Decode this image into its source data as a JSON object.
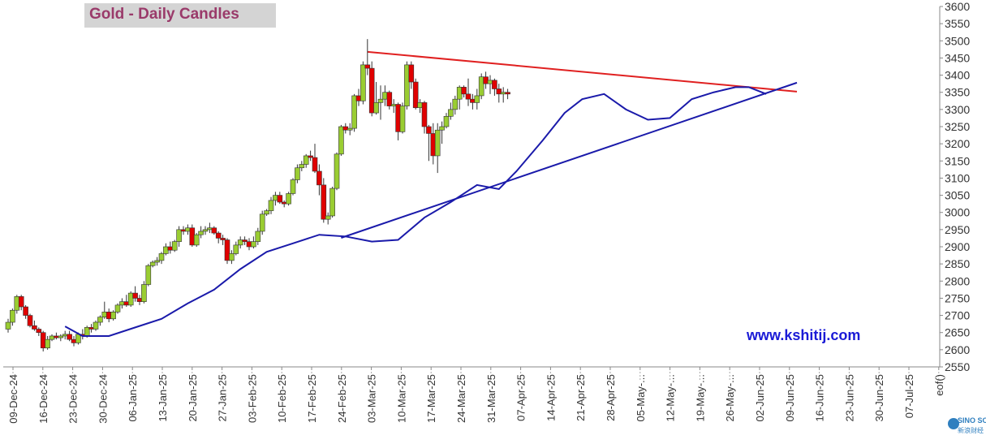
{
  "title": "Gold - Daily Candles",
  "watermark": "www.kshitij.com",
  "logo": {
    "name": "SINO SOUND",
    "sub": "新浪财经"
  },
  "chart_data": {
    "type": "candlestick",
    "ylim": [
      2550,
      3600
    ],
    "yticks": [
      2550,
      2600,
      2650,
      2700,
      2750,
      2800,
      2850,
      2900,
      2950,
      3000,
      3050,
      3100,
      3150,
      3200,
      3250,
      3300,
      3350,
      3400,
      3450,
      3500,
      3550,
      3600
    ],
    "xlabels": [
      "09-Dec-24",
      "16-Dec-24",
      "23-Dec-24",
      "30-Dec-24",
      "06-Jan-25",
      "13-Jan-25",
      "20-Jan-25",
      "27-Jan-25",
      "03-Feb-25",
      "10-Feb-25",
      "17-Feb-25",
      "24-Feb-25",
      "03-Mar-25",
      "10-Mar-25",
      "17-Mar-25",
      "24-Mar-25",
      "31-Mar-25",
      "07-Apr-25",
      "14-Apr-25",
      "21-Apr-25",
      "28-Apr-25",
      "05-May-...",
      "12-May-...",
      "19-May-...",
      "26-May-...",
      "02-Jun-25",
      "09-Jun-25",
      "16-Jun-25",
      "23-Jun-25",
      "30-Jun-25",
      "07-Jul-25",
      "eof()"
    ],
    "colors": {
      "up": "#9acd32",
      "down": "#e00000",
      "ma": "#1a1aaa",
      "resistance": "#e02020",
      "support": "#1a1aaa",
      "axis": "#888888",
      "grid_text": "#333333"
    },
    "candles": [
      [
        2660,
        2690,
        2650,
        2680
      ],
      [
        2680,
        2720,
        2670,
        2715
      ],
      [
        2715,
        2760,
        2705,
        2755
      ],
      [
        2755,
        2760,
        2715,
        2725
      ],
      [
        2725,
        2730,
        2690,
        2700
      ],
      [
        2700,
        2705,
        2665,
        2670
      ],
      [
        2670,
        2685,
        2655,
        2660
      ],
      [
        2660,
        2665,
        2640,
        2650
      ],
      [
        2650,
        2655,
        2595,
        2605
      ],
      [
        2605,
        2640,
        2600,
        2630
      ],
      [
        2630,
        2645,
        2625,
        2640
      ],
      [
        2640,
        2650,
        2630,
        2635
      ],
      [
        2635,
        2645,
        2625,
        2640
      ],
      [
        2640,
        2655,
        2630,
        2645
      ],
      [
        2645,
        2655,
        2625,
        2630
      ],
      [
        2630,
        2640,
        2610,
        2620
      ],
      [
        2620,
        2650,
        2615,
        2645
      ],
      [
        2645,
        2660,
        2630,
        2640
      ],
      [
        2640,
        2670,
        2635,
        2665
      ],
      [
        2665,
        2675,
        2650,
        2660
      ],
      [
        2660,
        2685,
        2655,
        2680
      ],
      [
        2680,
        2700,
        2670,
        2695
      ],
      [
        2695,
        2740,
        2690,
        2710
      ],
      [
        2710,
        2720,
        2680,
        2690
      ],
      [
        2690,
        2715,
        2685,
        2710
      ],
      [
        2710,
        2735,
        2705,
        2730
      ],
      [
        2730,
        2750,
        2720,
        2740
      ],
      [
        2740,
        2760,
        2725,
        2730
      ],
      [
        2730,
        2770,
        2725,
        2765
      ],
      [
        2765,
        2785,
        2740,
        2750
      ],
      [
        2750,
        2760,
        2730,
        2740
      ],
      [
        2740,
        2800,
        2735,
        2790
      ],
      [
        2790,
        2850,
        2785,
        2845
      ],
      [
        2845,
        2860,
        2840,
        2855
      ],
      [
        2855,
        2870,
        2845,
        2860
      ],
      [
        2860,
        2885,
        2850,
        2880
      ],
      [
        2880,
        2910,
        2875,
        2900
      ],
      [
        2900,
        2915,
        2880,
        2890
      ],
      [
        2890,
        2920,
        2885,
        2915
      ],
      [
        2915,
        2960,
        2900,
        2950
      ],
      [
        2950,
        2960,
        2935,
        2945
      ],
      [
        2945,
        2965,
        2935,
        2955
      ],
      [
        2955,
        2965,
        2900,
        2905
      ],
      [
        2905,
        2940,
        2900,
        2935
      ],
      [
        2935,
        2960,
        2925,
        2945
      ],
      [
        2945,
        2960,
        2935,
        2950
      ],
      [
        2950,
        2970,
        2940,
        2955
      ],
      [
        2955,
        2960,
        2935,
        2940
      ],
      [
        2940,
        2945,
        2910,
        2925
      ],
      [
        2925,
        2935,
        2905,
        2920
      ],
      [
        2920,
        2925,
        2850,
        2860
      ],
      [
        2860,
        2890,
        2850,
        2880
      ],
      [
        2880,
        2915,
        2875,
        2905
      ],
      [
        2905,
        2930,
        2895,
        2920
      ],
      [
        2920,
        2930,
        2905,
        2915
      ],
      [
        2915,
        2925,
        2890,
        2900
      ],
      [
        2900,
        2930,
        2895,
        2915
      ],
      [
        2915,
        2955,
        2905,
        2945
      ],
      [
        2945,
        3005,
        2935,
        2995
      ],
      [
        2995,
        3010,
        2990,
        3005
      ],
      [
        3005,
        3045,
        2995,
        3035
      ],
      [
        3035,
        3060,
        3020,
        3050
      ],
      [
        3050,
        3060,
        3025,
        3030
      ],
      [
        3030,
        3035,
        3015,
        3025
      ],
      [
        3025,
        3060,
        3020,
        3055
      ],
      [
        3055,
        3100,
        3050,
        3095
      ],
      [
        3095,
        3140,
        3085,
        3130
      ],
      [
        3130,
        3150,
        3120,
        3140
      ],
      [
        3140,
        3170,
        3130,
        3165
      ],
      [
        3165,
        3180,
        3150,
        3160
      ],
      [
        3160,
        3200,
        3115,
        3120
      ],
      [
        3120,
        3140,
        3050,
        3080
      ],
      [
        3080,
        3100,
        2970,
        2980
      ],
      [
        2980,
        3000,
        2965,
        2990
      ],
      [
        2990,
        3075,
        2985,
        3070
      ],
      [
        3070,
        3175,
        3065,
        3170
      ],
      [
        3170,
        3255,
        3165,
        3250
      ],
      [
        3250,
        3260,
        3230,
        3240
      ],
      [
        3240,
        3260,
        3225,
        3245
      ],
      [
        3245,
        3345,
        3235,
        3340
      ],
      [
        3340,
        3360,
        3310,
        3325
      ],
      [
        3325,
        3440,
        3315,
        3430
      ],
      [
        3430,
        3505,
        3400,
        3420
      ],
      [
        3420,
        3440,
        3280,
        3290
      ],
      [
        3290,
        3380,
        3285,
        3320
      ],
      [
        3320,
        3370,
        3270,
        3330
      ],
      [
        3330,
        3370,
        3310,
        3350
      ],
      [
        3350,
        3355,
        3300,
        3310
      ],
      [
        3310,
        3330,
        3290,
        3315
      ],
      [
        3315,
        3320,
        3210,
        3235
      ],
      [
        3235,
        3320,
        3230,
        3310
      ],
      [
        3310,
        3440,
        3300,
        3430
      ],
      [
        3430,
        3440,
        3360,
        3380
      ],
      [
        3380,
        3390,
        3300,
        3305
      ],
      [
        3305,
        3330,
        3290,
        3320
      ],
      [
        3320,
        3325,
        3230,
        3250
      ],
      [
        3250,
        3255,
        3150,
        3230
      ],
      [
        3230,
        3260,
        3140,
        3165
      ],
      [
        3165,
        3260,
        3115,
        3240
      ],
      [
        3240,
        3265,
        3200,
        3250
      ],
      [
        3250,
        3290,
        3245,
        3280
      ],
      [
        3280,
        3320,
        3270,
        3300
      ],
      [
        3300,
        3340,
        3285,
        3330
      ],
      [
        3330,
        3370,
        3300,
        3365
      ],
      [
        3365,
        3370,
        3335,
        3345
      ],
      [
        3345,
        3390,
        3310,
        3330
      ],
      [
        3330,
        3345,
        3300,
        3320
      ],
      [
        3320,
        3360,
        3300,
        3340
      ],
      [
        3340,
        3405,
        3330,
        3395
      ],
      [
        3395,
        3410,
        3360,
        3375
      ],
      [
        3375,
        3400,
        3345,
        3385
      ],
      [
        3385,
        3390,
        3340,
        3360
      ],
      [
        3360,
        3375,
        3320,
        3345
      ],
      [
        3345,
        3365,
        3320,
        3350
      ],
      [
        3350,
        3360,
        3330,
        3345
      ]
    ],
    "moving_average": [
      [
        13,
        2668
      ],
      [
        17,
        2640
      ],
      [
        23,
        2640
      ],
      [
        29,
        2665
      ],
      [
        35,
        2690
      ],
      [
        41,
        2735
      ],
      [
        47,
        2775
      ],
      [
        53,
        2835
      ],
      [
        59,
        2885
      ],
      [
        65,
        2910
      ],
      [
        71,
        2935
      ],
      [
        77,
        2930
      ],
      [
        83,
        2915
      ],
      [
        89,
        2920
      ],
      [
        95,
        2985
      ],
      [
        101,
        3030
      ],
      [
        107,
        3080
      ],
      [
        112,
        3068
      ],
      [
        116,
        3120
      ],
      [
        122,
        3210
      ],
      [
        127,
        3290
      ],
      [
        131,
        3330
      ],
      [
        136,
        3345
      ],
      [
        141,
        3300
      ],
      [
        146,
        3270
      ],
      [
        151,
        3275
      ],
      [
        156,
        3330
      ],
      [
        161,
        3350
      ],
      [
        166,
        3365
      ],
      [
        169,
        3365
      ],
      [
        173,
        3345
      ]
    ],
    "trendlines": [
      {
        "kind": "resistance",
        "from": [
          82,
          3468
        ],
        "to": [
          180,
          3352
        ]
      },
      {
        "kind": "support",
        "from": [
          76,
          2926
        ],
        "to": [
          180,
          3378
        ]
      }
    ]
  }
}
